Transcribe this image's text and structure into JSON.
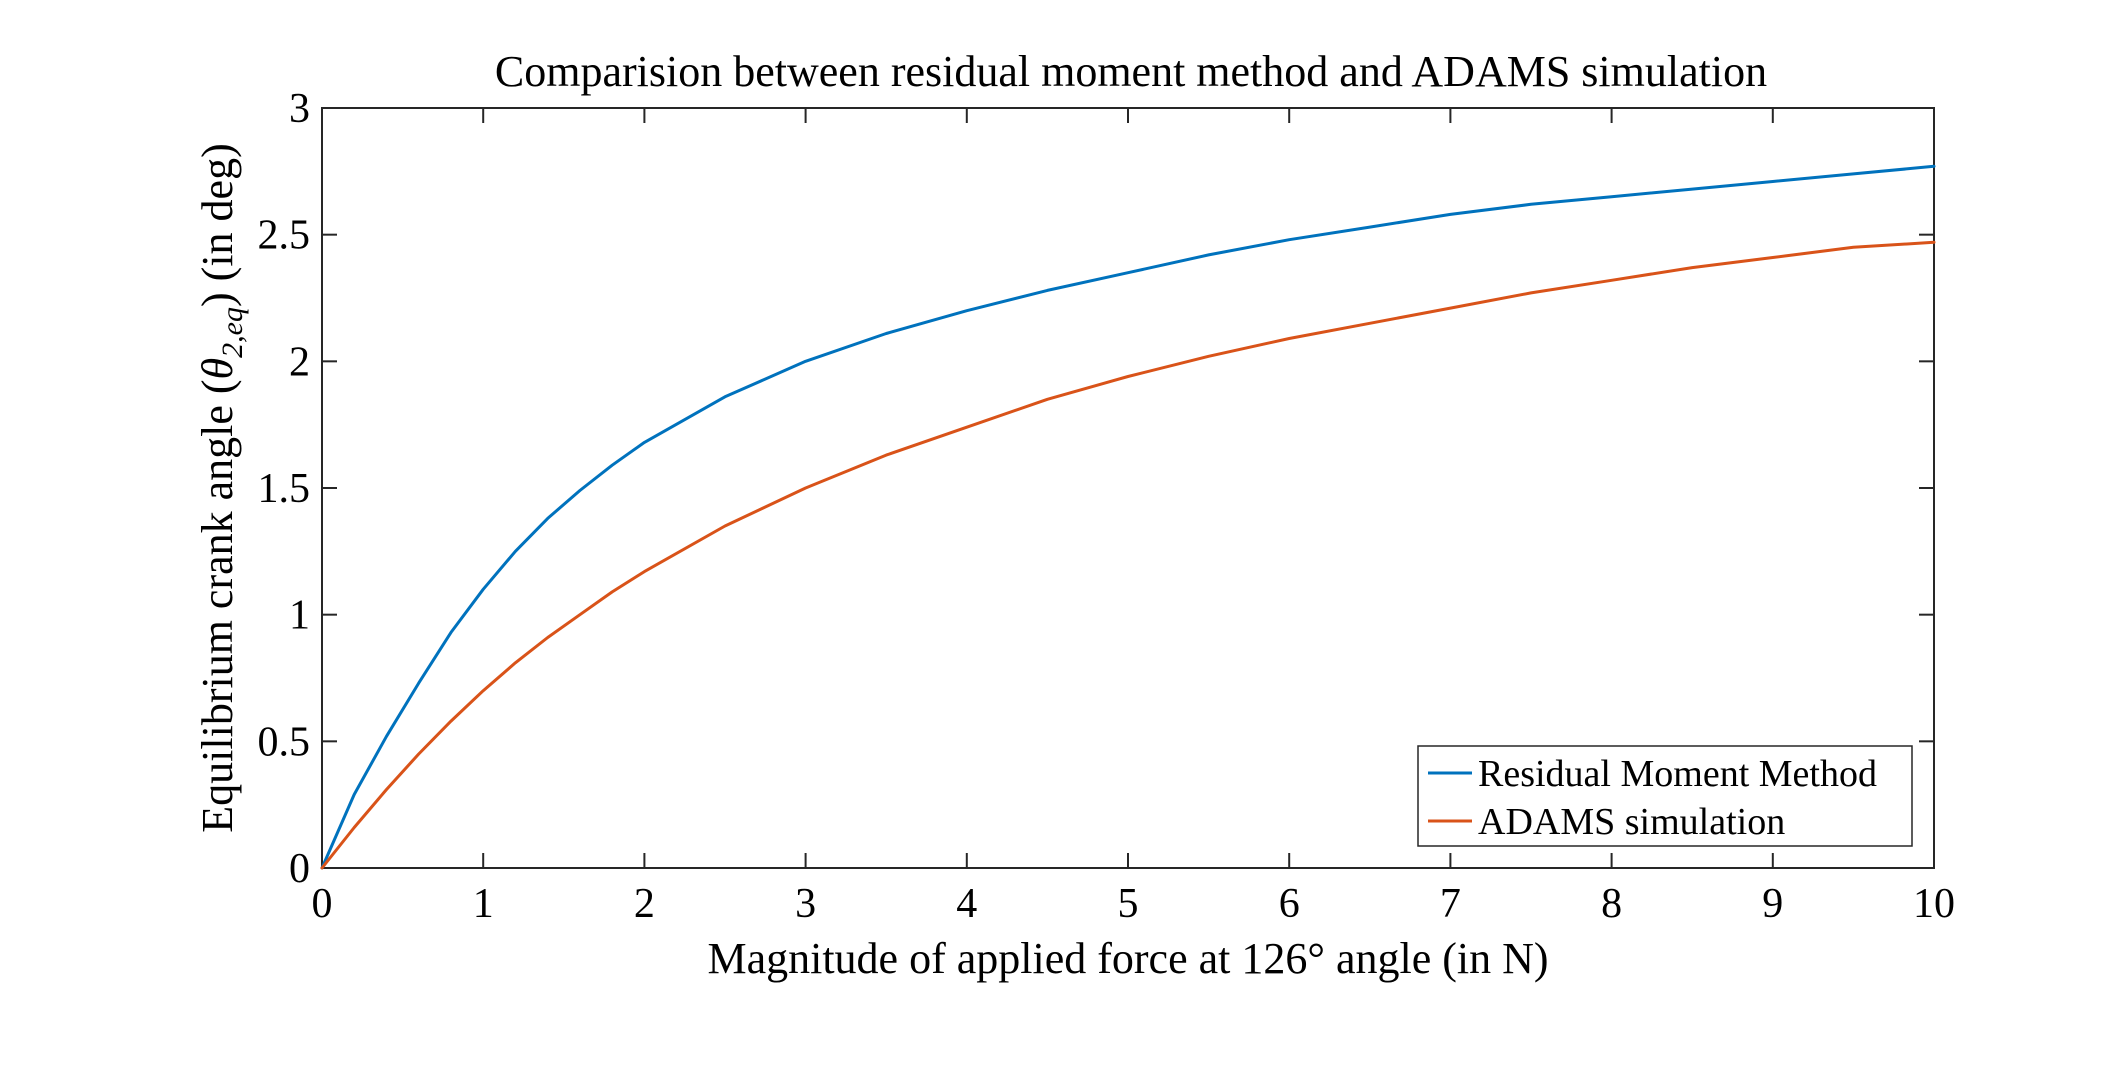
{
  "chart_data": {
    "type": "line",
    "title": "Comparision between residual moment method and ADAMS simulation",
    "xlabel": "Magnitude of applied force at 126° angle (in N)",
    "ylabel_main": "Equilibrium crank angle (",
    "ylabel_symbol": "θ",
    "ylabel_subscript": "2,eq",
    "ylabel_tail": ") (in deg)",
    "xlim": [
      0,
      10
    ],
    "ylim": [
      0,
      3
    ],
    "xticks": [
      0,
      1,
      2,
      3,
      4,
      5,
      6,
      7,
      8,
      9,
      10
    ],
    "xtick_labels": [
      "0",
      "1",
      "2",
      "3",
      "4",
      "5",
      "6",
      "7",
      "8",
      "9",
      "10"
    ],
    "yticks": [
      0,
      0.5,
      1,
      1.5,
      2,
      2.5,
      3
    ],
    "ytick_labels": [
      "0",
      "0.5",
      "1",
      "1.5",
      "2",
      "2.5",
      "3"
    ],
    "grid": false,
    "legend_position": "bottom-right",
    "x": [
      0,
      0.2,
      0.4,
      0.6,
      0.8,
      1.0,
      1.2,
      1.4,
      1.6,
      1.8,
      2.0,
      2.5,
      3.0,
      3.5,
      4.0,
      4.5,
      5.0,
      5.5,
      6.0,
      6.5,
      7.0,
      7.5,
      8.0,
      8.5,
      9.0,
      9.5,
      10.0
    ],
    "series": [
      {
        "name": "Residual Moment Method",
        "color": "#0072bd",
        "values": [
          0,
          0.29,
          0.52,
          0.73,
          0.93,
          1.1,
          1.25,
          1.38,
          1.49,
          1.59,
          1.68,
          1.86,
          2.0,
          2.11,
          2.2,
          2.28,
          2.35,
          2.42,
          2.48,
          2.53,
          2.58,
          2.62,
          2.65,
          2.68,
          2.71,
          2.74,
          2.77
        ]
      },
      {
        "name": "ADAMS simulation",
        "color": "#d95319",
        "values": [
          0,
          0.16,
          0.31,
          0.45,
          0.58,
          0.7,
          0.81,
          0.91,
          1.0,
          1.09,
          1.17,
          1.35,
          1.5,
          1.63,
          1.74,
          1.85,
          1.94,
          2.02,
          2.09,
          2.15,
          2.21,
          2.27,
          2.32,
          2.37,
          2.41,
          2.45,
          2.47
        ]
      }
    ]
  }
}
